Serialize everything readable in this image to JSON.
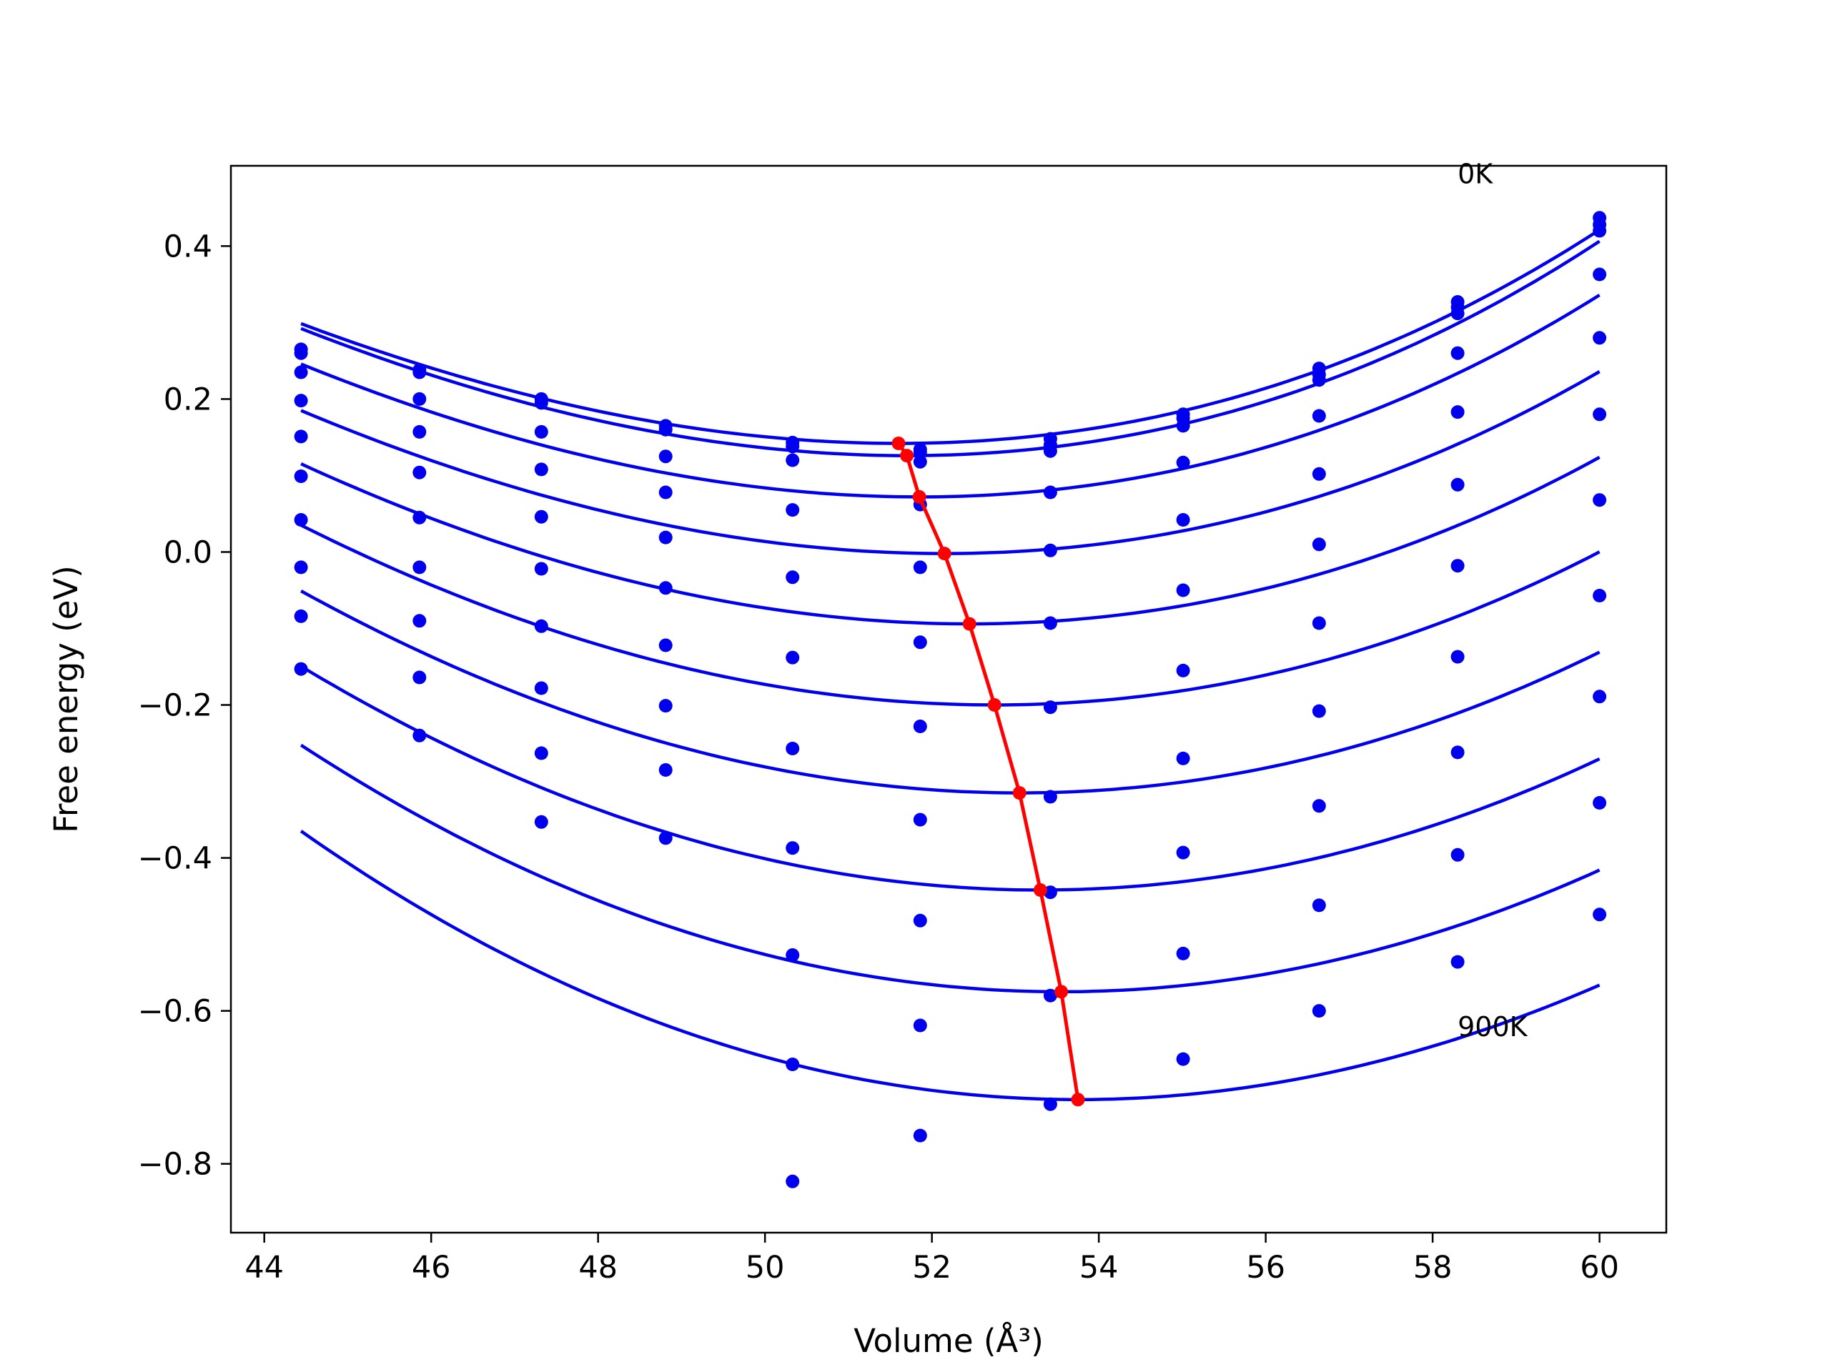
{
  "chart_data": {
    "type": "line",
    "title": "",
    "xlabel": "Volume (Å³)",
    "ylabel": "Free energy (eV)",
    "xlim": [
      43.6,
      60.8
    ],
    "ylim": [
      -0.89,
      0.505
    ],
    "xticks": [
      44,
      46,
      48,
      50,
      52,
      54,
      56,
      58,
      60
    ],
    "xtick_labels": [
      "44",
      "46",
      "48",
      "50",
      "52",
      "54",
      "56",
      "58",
      "60"
    ],
    "yticks": [
      -0.8,
      -0.6,
      -0.4,
      -0.2,
      0.0,
      0.2,
      0.4
    ],
    "ytick_labels": [
      "−0.8",
      "−0.6",
      "−0.4",
      "−0.2",
      "0.0",
      "0.2",
      "0.4"
    ],
    "grid": false,
    "colors": {
      "points": "#0000ee",
      "fits": "#0000ee",
      "minimum_path": "#ff0000"
    },
    "annotations": [
      {
        "text": "0K",
        "x": 58.3,
        "y": 0.495
      },
      {
        "text": "900K",
        "x": 58.3,
        "y": -0.62
      }
    ],
    "volumes": [
      44.44,
      45.86,
      47.32,
      48.81,
      50.33,
      51.86,
      53.42,
      55.01,
      56.64,
      58.3,
      60.0
    ],
    "point_series": [
      [
        0.265,
        0.238,
        0.2,
        0.165,
        0.143,
        0.134,
        0.148,
        0.18,
        0.24,
        0.327,
        0.437
      ],
      [
        0.26,
        0.235,
        0.195,
        0.16,
        0.138,
        0.13,
        0.14,
        0.175,
        0.232,
        0.32,
        0.428
      ],
      [
        0.235,
        0.2,
        0.157,
        0.125,
        0.12,
        0.118,
        0.132,
        0.165,
        0.225,
        0.312,
        0.42
      ],
      [
        0.198,
        0.157,
        0.108,
        0.078,
        0.055,
        0.062,
        0.078,
        0.117,
        0.178,
        0.26,
        0.363
      ],
      [
        0.151,
        0.104,
        0.046,
        0.019,
        -0.033,
        -0.02,
        0.002,
        0.042,
        0.102,
        0.183,
        0.28
      ],
      [
        0.099,
        0.045,
        -0.022,
        -0.047,
        -0.138,
        -0.118,
        -0.093,
        -0.05,
        0.01,
        0.088,
        0.18
      ],
      [
        0.042,
        -0.02,
        -0.097,
        -0.122,
        -0.257,
        -0.228,
        -0.203,
        -0.155,
        -0.093,
        -0.018,
        0.068
      ],
      [
        -0.02,
        -0.09,
        -0.178,
        -0.201,
        -0.387,
        -0.35,
        -0.32,
        -0.27,
        -0.208,
        -0.137,
        -0.057
      ],
      [
        -0.084,
        -0.164,
        -0.263,
        -0.285,
        -0.527,
        -0.482,
        -0.445,
        -0.393,
        -0.332,
        -0.262,
        -0.189
      ],
      [
        -0.153,
        -0.24,
        -0.353,
        -0.374,
        -0.67,
        -0.619,
        -0.58,
        -0.525,
        -0.462,
        -0.396,
        -0.328
      ],
      [
        null,
        null,
        null,
        null,
        -0.823,
        -0.763,
        -0.722,
        -0.663,
        -0.6,
        -0.536,
        -0.474
      ]
    ],
    "fit_curves": [
      {
        "v0": 51.6,
        "e0": 0.142,
        "a": 0.00347,
        "b": 5.8e-05
      },
      {
        "v0": 51.7,
        "e0": 0.126,
        "a": 0.00358,
        "b": 5.9e-05
      },
      {
        "v0": 51.85,
        "e0": 0.072,
        "a": 0.00355,
        "b": 5.2e-05
      },
      {
        "v0": 52.15,
        "e0": -0.002,
        "a": 0.0035,
        "b": 4.6e-05
      },
      {
        "v0": 52.45,
        "e0": -0.094,
        "a": 0.00355,
        "b": 3.6e-05
      },
      {
        "v0": 52.75,
        "e0": -0.2,
        "a": 0.00362,
        "b": 2.6e-05
      },
      {
        "v0": 53.05,
        "e0": -0.315,
        "a": 0.0037,
        "b": 1.6e-05
      },
      {
        "v0": 53.3,
        "e0": -0.442,
        "a": 0.00378,
        "b": 6e-06
      },
      {
        "v0": 53.55,
        "e0": -0.575,
        "a": 0.00385,
        "b": -4e-06
      },
      {
        "v0": 53.75,
        "e0": -0.716,
        "a": 0.00392,
        "b": -1.4e-05
      }
    ],
    "fit_range": [
      44.44,
      60.0
    ],
    "minimum_path": {
      "x": [
        51.6,
        51.7,
        51.85,
        52.15,
        52.45,
        52.75,
        53.05,
        53.3,
        53.55,
        53.75
      ],
      "y": [
        0.142,
        0.126,
        0.072,
        -0.002,
        -0.094,
        -0.2,
        -0.315,
        -0.442,
        -0.575,
        -0.716
      ]
    }
  }
}
